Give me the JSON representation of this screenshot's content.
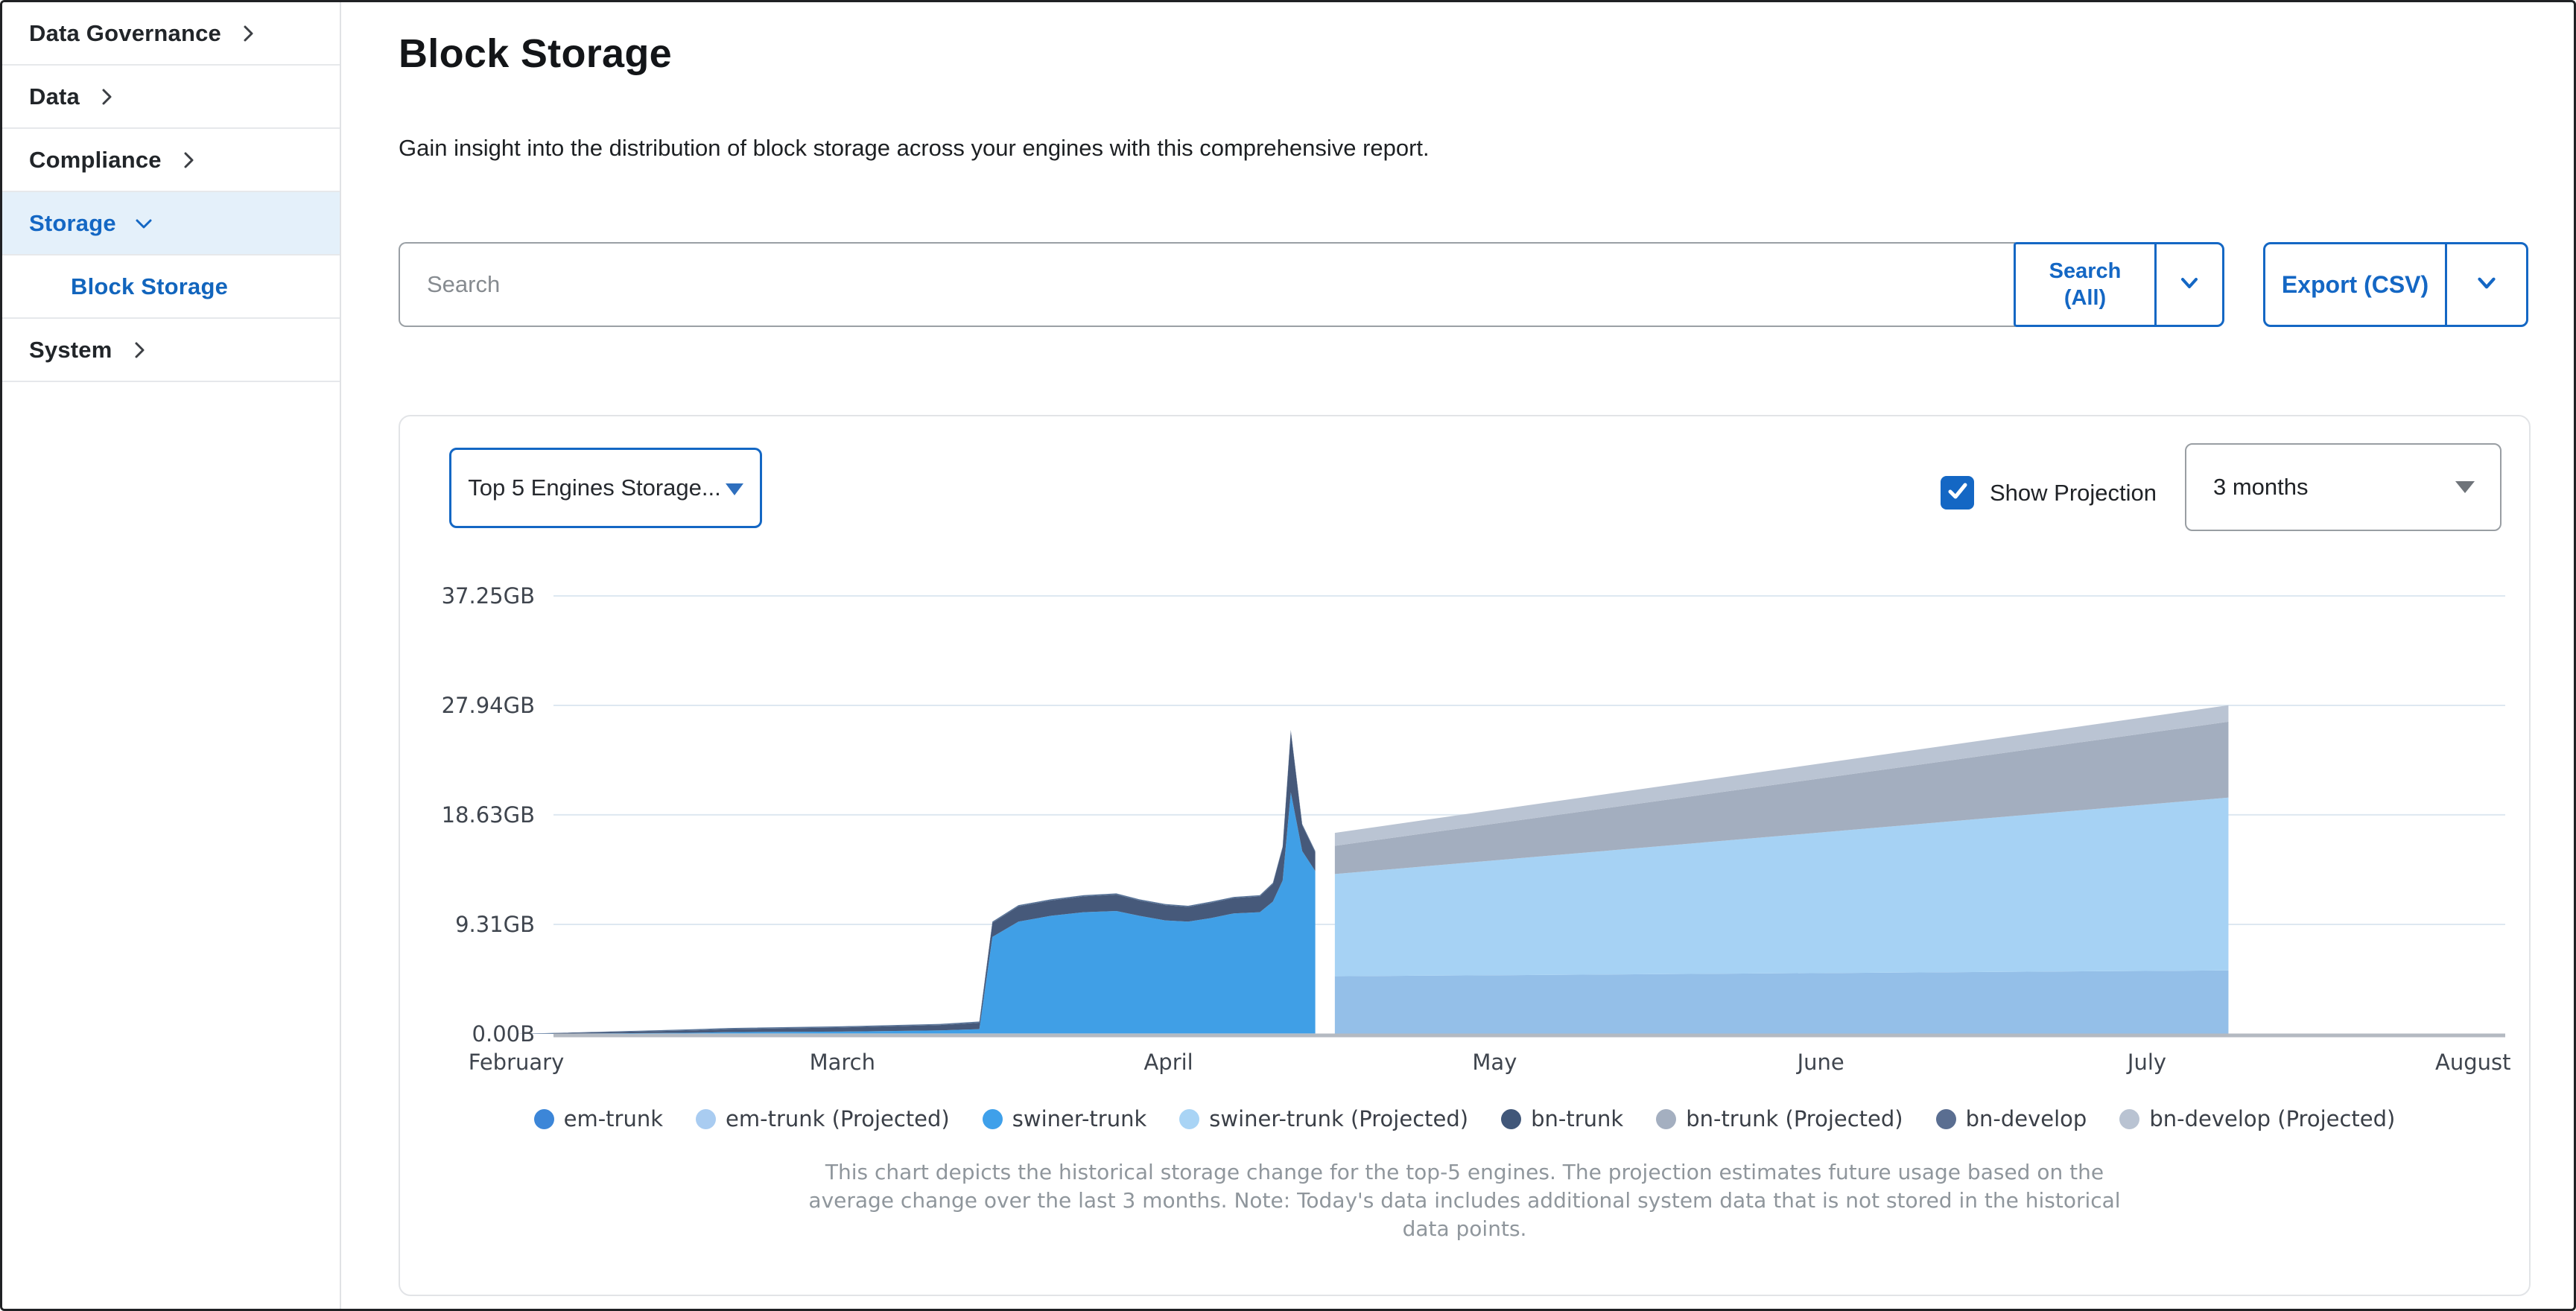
{
  "sidebar": {
    "items": [
      {
        "label": "Data Governance",
        "expanded": false
      },
      {
        "label": "Data",
        "expanded": false
      },
      {
        "label": "Compliance",
        "expanded": false
      },
      {
        "label": "Storage",
        "expanded": true,
        "active": true
      },
      {
        "label": "Block Storage",
        "subitem": true,
        "active": true
      },
      {
        "label": "System",
        "expanded": false
      }
    ]
  },
  "header": {
    "title": "Block Storage",
    "description": "Gain insight into the distribution of block storage across your engines with this comprehensive report."
  },
  "toolbar": {
    "search_placeholder": "Search",
    "search_button_line1": "Search",
    "search_button_line2": "(All)",
    "export_label": "Export (CSV)"
  },
  "chart_controls": {
    "engine_filter": "Top 5 Engines Storage...",
    "show_projection_label": "Show Projection",
    "projection_checked": true,
    "projection_window": "3 months"
  },
  "caption": "This chart depicts the historical storage change for the top-5 engines. The projection estimates future usage based on the average change over the last 3 months. Note: Today's data includes additional system data that is not stored in the historical data points.",
  "chart_data": {
    "type": "area",
    "title": "Top 5 Engines Storage",
    "unit": "GB",
    "x_unit": "months since February tick",
    "x_tick_labels": [
      "February",
      "March",
      "April",
      "May",
      "June",
      "July",
      "August"
    ],
    "y_tick_labels": [
      "37.25GB",
      "27.94GB",
      "18.63GB",
      "9.31GB",
      "0.00B"
    ],
    "y_tick_values": [
      37.25,
      27.94,
      18.63,
      9.31,
      0
    ],
    "ylim": [
      0,
      41
    ],
    "grid": true,
    "legend_position": "bottom",
    "historical": {
      "x": [
        0,
        0.55,
        0.65,
        1.0,
        1.3,
        1.42,
        1.46,
        1.54,
        1.64,
        1.74,
        1.84,
        1.91,
        1.99,
        2.06,
        2.13,
        2.2,
        2.28,
        2.32,
        2.35,
        2.375,
        2.41,
        2.45
      ],
      "series": [
        {
          "name": "em-trunk",
          "color": "#3c86d8",
          "values": [
            0,
            0.05,
            0.05,
            0.05,
            0.05,
            0.05,
            0.05,
            0.05,
            0.05,
            0.05,
            0.05,
            0.05,
            0.05,
            0.05,
            0.05,
            0.05,
            0.05,
            0.05,
            0.05,
            0.05,
            0.05,
            0.05
          ]
        },
        {
          "name": "swiner-trunk",
          "color": "#409fe6",
          "values": [
            0,
            0.05,
            0.1,
            0.15,
            0.25,
            0.35,
            8.2,
            9.5,
            10.0,
            10.3,
            10.4,
            10.0,
            9.6,
            9.5,
            9.8,
            10.2,
            10.3,
            11.2,
            13.0,
            20.5,
            15.5,
            13.8
          ]
        },
        {
          "name": "bn-trunk",
          "color": "#46597a",
          "values": [
            0,
            0.2,
            0.25,
            0.35,
            0.45,
            0.55,
            1.2,
            1.3,
            1.3,
            1.35,
            1.4,
            1.3,
            1.3,
            1.25,
            1.3,
            1.3,
            1.35,
            1.5,
            2.8,
            5.2,
            2.2,
            1.6
          ]
        },
        {
          "name": "bn-develop",
          "color": "#5a7599",
          "values": [
            0,
            0.1,
            0.1,
            0.1,
            0.1,
            0.1,
            0.1,
            0.1,
            0.1,
            0.1,
            0.1,
            0.1,
            0.1,
            0.1,
            0.1,
            0.1,
            0.1,
            0.1,
            0.1,
            0.1,
            0.1,
            0.1
          ]
        }
      ]
    },
    "projection": {
      "x": [
        2.51,
        5.25
      ],
      "series": [
        {
          "name": "em-trunk (Projected)",
          "color": "#94bfe8",
          "values": [
            4.9,
            5.4
          ]
        },
        {
          "name": "swiner-trunk (Projected)",
          "color": "#a6d2f4",
          "values": [
            8.7,
            14.7
          ]
        },
        {
          "name": "bn-trunk (Projected)",
          "color": "#a3aebf",
          "values": [
            2.4,
            6.45
          ]
        },
        {
          "name": "bn-develop (Projected)",
          "color": "#bac4d3",
          "values": [
            1.1,
            1.4
          ]
        }
      ]
    },
    "legend": [
      {
        "label": "em-trunk",
        "color": "#3c86d8"
      },
      {
        "label": "em-trunk (Projected)",
        "color": "#a9ccf1"
      },
      {
        "label": "swiner-trunk",
        "color": "#3fa0ea"
      },
      {
        "label": "swiner-trunk (Projected)",
        "color": "#a9d4f5"
      },
      {
        "label": "bn-trunk",
        "color": "#415779"
      },
      {
        "label": "bn-trunk (Projected)",
        "color": "#a4afc0"
      },
      {
        "label": "bn-develop",
        "color": "#5a6e91"
      },
      {
        "label": "bn-develop (Projected)",
        "color": "#b9c3d2"
      }
    ]
  }
}
